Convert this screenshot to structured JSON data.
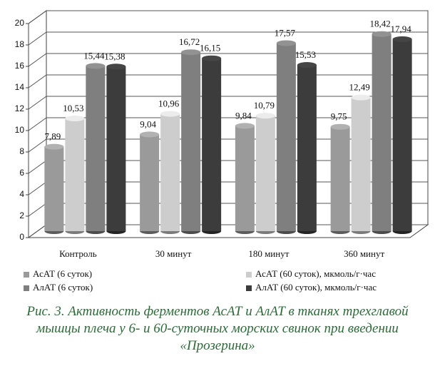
{
  "chart_data": {
    "type": "bar3d",
    "categories": [
      "Контроль",
      "30 минут",
      "180 минут",
      "360 минут"
    ],
    "series": [
      {
        "name": "АсАТ (6 суток)",
        "color": "#9a9a9a",
        "values": [
          7.89,
          9.04,
          9.84,
          9.75
        ],
        "value_labels": [
          "7,89",
          "9,04",
          "9,84",
          "9,75"
        ]
      },
      {
        "name": "АсАТ (60 суток), мкмоль/г·час",
        "color": "#cdcdcd",
        "values": [
          10.53,
          10.96,
          10.79,
          12.49
        ],
        "value_labels": [
          "10,53",
          "10,96",
          "10,79",
          "12,49"
        ]
      },
      {
        "name": "АлАТ (6 суток)",
        "color": "#7f7f7f",
        "values": [
          15.44,
          16.72,
          17.57,
          18.42
        ],
        "value_labels": [
          "15,44",
          "16,72",
          "17,57",
          "18,42"
        ]
      },
      {
        "name": "АлАТ (60 суток), мкмоль/г·час",
        "color": "#3c3c3c",
        "values": [
          15.38,
          16.15,
          15.53,
          17.94
        ],
        "value_labels": [
          "15,38",
          "16,15",
          "15,53",
          "17,94"
        ]
      }
    ],
    "ylim": [
      0,
      20
    ],
    "yticks": [
      0,
      2,
      4,
      6,
      8,
      10,
      12,
      14,
      16,
      18,
      20
    ],
    "grid": true,
    "caption": "Рис. 3. Активность ферментов АсАТ и АлАТ в тканях трехглавой мышцы плеча у 6- и 60-суточных морских свинок при введении «Прозерина»"
  }
}
